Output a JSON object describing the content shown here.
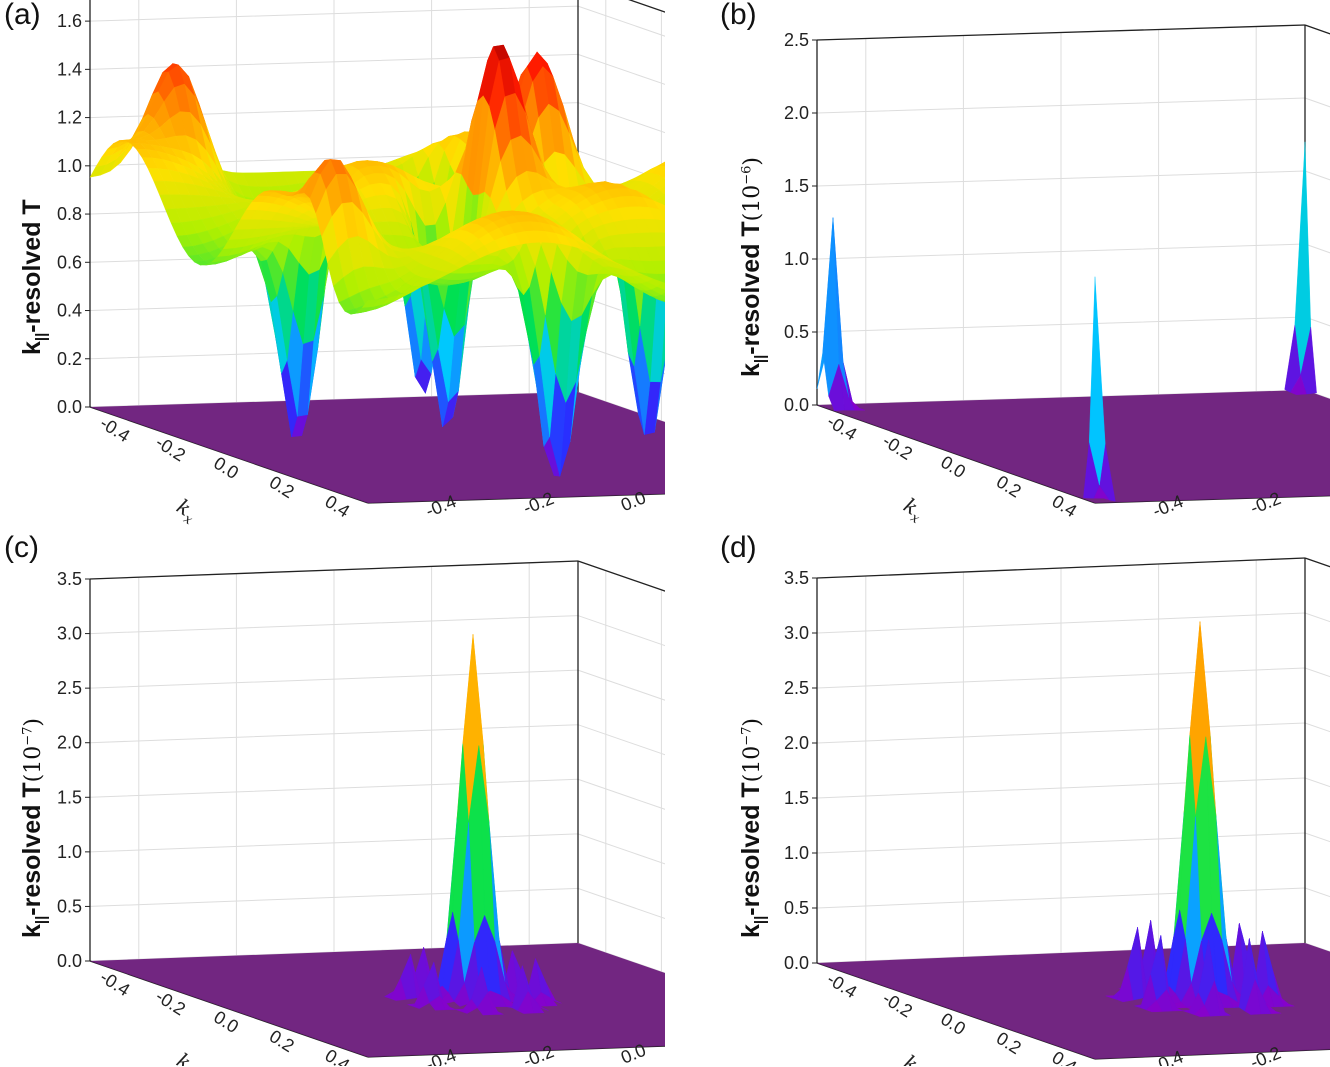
{
  "chart_data": [
    {
      "type": "surface3d",
      "panel_label": "(a)",
      "zlabel_main": "k",
      "zlabel_sub": "||",
      "zlabel_rest": "-resolved T",
      "zlabel_unit": "",
      "zlabel_exp": "",
      "zlim": [
        0,
        1.7
      ],
      "zticks": [
        "0.0",
        "0.2",
        "0.4",
        "0.6",
        "0.8",
        "1.0",
        "1.2",
        "1.4",
        "1.6"
      ],
      "zvals": [
        0,
        0.2,
        0.4,
        0.6,
        0.8,
        1.0,
        1.2,
        1.4,
        1.6
      ],
      "xlabel": "k",
      "xlabel_sub": "x",
      "ylabel": "k",
      "ylabel_sub": "y",
      "xticks": [
        "-0.4",
        "-0.2",
        "0.0",
        "0.2",
        "0.4"
      ],
      "yticks": [
        "-0.4",
        "-0.2",
        "0.0",
        "0.2",
        "0.4"
      ],
      "tick_vals": [
        -0.4,
        -0.2,
        0.0,
        0.2,
        0.4
      ],
      "description_values": {
        "baseline": 0.95,
        "peaks": [
          {
            "kx": -0.45,
            "ky": -0.35,
            "T": 1.4
          },
          {
            "kx": 0.0,
            "ky": 0.05,
            "T": 1.7
          },
          {
            "kx": -0.2,
            "ky": 0.25,
            "T": 1.6
          },
          {
            "kx": 0.3,
            "ky": -0.45,
            "T": 1.35
          },
          {
            "kx": 0.45,
            "ky": 0.4,
            "T": 1.3
          }
        ],
        "dips": [
          {
            "kx": 0.3,
            "ky": 0.0,
            "T": 0.0
          },
          {
            "kx": -0.1,
            "ky": -0.3,
            "T": 0.0
          },
          {
            "kx": 0.1,
            "ky": 0.3,
            "T": 0.1
          },
          {
            "kx": -0.35,
            "ky": 0.1,
            "T": 0.05
          },
          {
            "kx": 0.0,
            "ky": -0.05,
            "T": 0.1
          }
        ]
      }
    },
    {
      "type": "surface3d",
      "panel_label": "(b)",
      "zlabel_main": "k",
      "zlabel_sub": "||",
      "zlabel_rest": "-resolved T",
      "zlabel_unit": "(10",
      "zlabel_exp": "−6",
      "zlabel_close": ")",
      "zlim": [
        0,
        2.5
      ],
      "zticks": [
        "0.0",
        "0.5",
        "1.0",
        "1.5",
        "2.0",
        "2.5"
      ],
      "zvals": [
        0,
        0.5,
        1.0,
        1.5,
        2.0,
        2.5
      ],
      "xlabel": "k",
      "xlabel_sub": "x",
      "ylabel": "k",
      "ylabel_sub": "y",
      "xticks": [
        "-0.4",
        "-0.2",
        "0.0",
        "0.2",
        "0.4"
      ],
      "yticks": [
        "-0.4",
        "-0.2",
        "0.0",
        "0.2",
        "0.4"
      ],
      "tick_vals": [
        -0.4,
        -0.2,
        0.0,
        0.2,
        0.4
      ],
      "description_values": {
        "baseline": 0.0,
        "peaks": [
          {
            "kx": -0.48,
            "ky": -0.48,
            "T": 1.3
          },
          {
            "kx": -0.5,
            "ky": 0.5,
            "T": 1.7
          },
          {
            "kx": 0.5,
            "ky": -0.5,
            "T": 1.55
          },
          {
            "kx": 0.5,
            "ky": 0.5,
            "T": 1.8
          }
        ]
      }
    },
    {
      "type": "surface3d",
      "panel_label": "(c)",
      "zlabel_main": "k",
      "zlabel_sub": "||",
      "zlabel_rest": "-resolved T",
      "zlabel_unit": "(10",
      "zlabel_exp": "−7",
      "zlabel_close": ")",
      "zlim": [
        0,
        3.5
      ],
      "zticks": [
        "0.0",
        "0.5",
        "1.0",
        "1.5",
        "2.0",
        "2.5",
        "3.0",
        "3.5"
      ],
      "zvals": [
        0,
        0.5,
        1.0,
        1.5,
        2.0,
        2.5,
        3.0,
        3.5
      ],
      "xlabel": "k",
      "xlabel_sub": "x",
      "ylabel": "k",
      "ylabel_sub": "y",
      "xticks": [
        "-0.4",
        "-0.2",
        "0.0",
        "0.2",
        "0.4"
      ],
      "yticks": [
        "-0.4",
        "-0.2",
        "0.0",
        "0.2",
        "0.4"
      ],
      "tick_vals": [
        -0.4,
        -0.2,
        0.0,
        0.2,
        0.4
      ],
      "description_values": {
        "baseline": 0.0,
        "central_peak": {
          "kx": 0.0,
          "ky": 0.0,
          "T": 3.35
        },
        "satellite_peaks_T": 0.55
      }
    },
    {
      "type": "surface3d",
      "panel_label": "(d)",
      "zlabel_main": "k",
      "zlabel_sub": "||",
      "zlabel_rest": "-resolved T",
      "zlabel_unit": "(10",
      "zlabel_exp": "−7",
      "zlabel_close": ")",
      "zlim": [
        0,
        3.5
      ],
      "zticks": [
        "0.0",
        "0.5",
        "1.0",
        "1.5",
        "2.0",
        "2.5",
        "3.0",
        "3.5"
      ],
      "zvals": [
        0,
        0.5,
        1.0,
        1.5,
        2.0,
        2.5,
        3.0,
        3.5
      ],
      "xlabel": "k",
      "xlabel_sub": "x",
      "ylabel": "k",
      "ylabel_sub": "y",
      "xticks": [
        "-0.4",
        "-0.2",
        "0.0",
        "0.2",
        "0.4"
      ],
      "yticks": [
        "-0.4",
        "-0.2",
        "0.0",
        "0.2",
        "0.4"
      ],
      "tick_vals": [
        -0.4,
        -0.2,
        0.0,
        0.2,
        0.4
      ],
      "description_values": {
        "baseline": 0.0,
        "central_peak": {
          "kx": 0.0,
          "ky": 0.0,
          "T": 3.45
        },
        "satellite_peaks_T": 0.9
      }
    }
  ],
  "colors": {
    "colormap": [
      "#8a00c8",
      "#2a2bff",
      "#00c8ff",
      "#00e050",
      "#b0f000",
      "#ffe000",
      "#ff8c00",
      "#ff1a00",
      "#b00000"
    ],
    "floor": "#6a1a7a",
    "frame": "#222222",
    "grid": "#dddddd"
  }
}
